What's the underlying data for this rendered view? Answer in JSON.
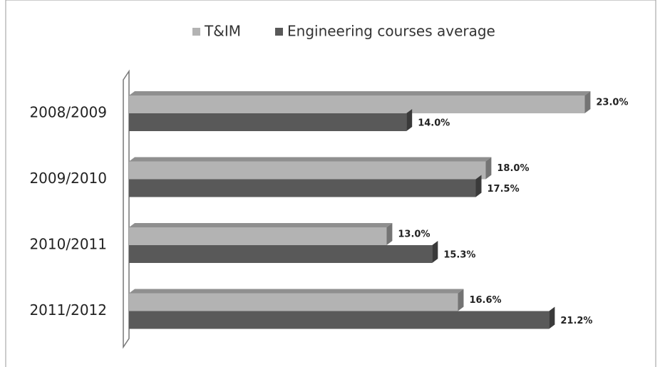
{
  "chart_data": {
    "type": "bar",
    "orientation": "horizontal",
    "categories": [
      "2008/2009",
      "2009/2010",
      "2010/2011",
      "2011/2012"
    ],
    "series": [
      {
        "name": "T&IM",
        "color": "#b3b3b3",
        "values": [
          23.0,
          18.0,
          13.0,
          16.6
        ],
        "value_labels": [
          "23.0%",
          "18.0%",
          "13.0%",
          "16.6%"
        ]
      },
      {
        "name": "Engineering courses average",
        "color": "#595959",
        "values": [
          14.0,
          17.5,
          15.3,
          21.2
        ],
        "value_labels": [
          "14.0%",
          "17.5%",
          "15.3%",
          "21.2%"
        ]
      }
    ],
    "legend": "top"
  }
}
